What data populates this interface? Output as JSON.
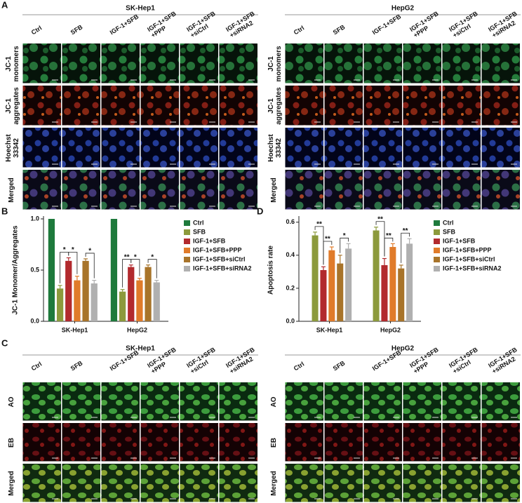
{
  "panel_labels": [
    "A",
    "B",
    "C",
    "D"
  ],
  "panel_a": {
    "grids": [
      {
        "title": "SK-Hep1",
        "columns": [
          [
            "Ctrl"
          ],
          [
            "SFB"
          ],
          [
            "IGF-1+SFB"
          ],
          [
            "IGF-1+SFB",
            "+PPP"
          ],
          [
            "IGF-1+SFB",
            "+siCtrl"
          ],
          [
            "IGF-1+SFB",
            "+siRNA2"
          ]
        ],
        "rows": [
          [
            "JC-1",
            "monomers"
          ],
          [
            "JC-1",
            "aggregates"
          ],
          [
            "Hoechst",
            "33342"
          ],
          [
            "Merged"
          ]
        ]
      },
      {
        "title": "HepG2",
        "columns": [
          [
            "Ctrl"
          ],
          [
            "SFB"
          ],
          [
            "IGF-1+SFB"
          ],
          [
            "IGF-1+SFB",
            "+PPP"
          ],
          [
            "IGF-1+SFB",
            "+siCtrl"
          ],
          [
            "IGF-1+SFB",
            "+siRNA2"
          ]
        ],
        "rows": [
          [
            "JC-1",
            "monomers"
          ],
          [
            "JC-1",
            "aggregates"
          ],
          [
            "Hoechst",
            "33342"
          ],
          [
            "Merged"
          ]
        ]
      }
    ]
  },
  "panel_c": {
    "grids": [
      {
        "title": "SK-Hep1",
        "columns": [
          [
            "Ctrl"
          ],
          [
            "SFB"
          ],
          [
            "IGF-1+SFB"
          ],
          [
            "IGF-1+SFB",
            "+PPP"
          ],
          [
            "IGF-1+SFB",
            "+siCtrl"
          ],
          [
            "IGF-1+SFB",
            "+siRNA2"
          ]
        ],
        "rows": [
          [
            "AO"
          ],
          [
            "EB"
          ],
          [
            "Merged"
          ]
        ]
      },
      {
        "title": "HepG2",
        "columns": [
          [
            "Ctrl"
          ],
          [
            "SFB"
          ],
          [
            "IGF-1+SFB"
          ],
          [
            "IGF-1+SFB",
            "+PPP"
          ],
          [
            "IGF-1+SFB",
            "+siCtrl"
          ],
          [
            "IGF-1+SFB",
            "+siRNA2"
          ]
        ],
        "rows": [
          [
            "AO"
          ],
          [
            "EB"
          ],
          [
            "Merged"
          ]
        ]
      }
    ]
  },
  "chart_data": [
    {
      "type": "bar",
      "ylabel": "JC-1 Monomer/Aggregates",
      "categories": [
        "SK-Hep1",
        "HepG2"
      ],
      "ylim": [
        0,
        1.0
      ],
      "yticks": [
        {
          "value": 0,
          "label": "0.0"
        },
        0.5,
        {
          "value": 1,
          "label": "1.0"
        }
      ],
      "series": [
        {
          "name": "Ctrl",
          "color": "#1e7a3c",
          "values": [
            1.0,
            1.0
          ]
        },
        {
          "name": "SFB",
          "color": "#8c9a3c",
          "values": [
            0.32,
            0.29
          ],
          "errors": [
            0.03,
            0.02
          ]
        },
        {
          "name": "IGF-1+SFB",
          "color": "#b22a2e",
          "values": [
            0.59,
            0.53
          ],
          "errors": [
            0.03,
            0.02
          ]
        },
        {
          "name": "IGF-1+SFB+PPP",
          "color": "#e07b2a",
          "values": [
            0.4,
            0.4
          ],
          "errors": [
            0.04,
            0.02
          ]
        },
        {
          "name": "IGF-1+SFB+siCtrl",
          "color": "#a8742a",
          "values": [
            0.59,
            0.53
          ],
          "errors": [
            0.02,
            0.02
          ]
        },
        {
          "name": "IGF-1+SFB+siRNA2",
          "color": "#b0b0b0",
          "values": [
            0.37,
            0.38
          ],
          "errors": [
            0.03,
            0.02
          ]
        }
      ],
      "annotations": [
        {
          "category": "SK-Hep1",
          "from": "SFB",
          "to": "IGF-1+SFB",
          "label": "*"
        },
        {
          "category": "SK-Hep1",
          "from": "IGF-1+SFB",
          "to": "IGF-1+SFB+PPP",
          "label": "*"
        },
        {
          "category": "SK-Hep1",
          "from": "IGF-1+SFB+siCtrl",
          "to": "IGF-1+SFB+siRNA2",
          "label": "*"
        },
        {
          "category": "HepG2",
          "from": "SFB",
          "to": "IGF-1+SFB",
          "label": "**"
        },
        {
          "category": "HepG2",
          "from": "IGF-1+SFB",
          "to": "IGF-1+SFB+PPP",
          "label": "*"
        },
        {
          "category": "HepG2",
          "from": "IGF-1+SFB+siCtrl",
          "to": "IGF-1+SFB+siRNA2",
          "label": "*"
        }
      ]
    },
    {
      "type": "bar",
      "ylabel": "Apoptosis rate",
      "categories": [
        "SK-Hep1",
        "HepG2"
      ],
      "ylim": [
        0,
        0.62
      ],
      "yticks": [
        {
          "value": 0,
          "label": "0.0"
        },
        0.2,
        0.4,
        0.6
      ],
      "series": [
        {
          "name": "Ctrl",
          "color": "#1e7a3c",
          "values": [
            null,
            null
          ]
        },
        {
          "name": "SFB",
          "color": "#8c9a3c",
          "values": [
            0.52,
            0.55
          ],
          "errors": [
            0.02,
            0.02
          ]
        },
        {
          "name": "IGF-1+SFB",
          "color": "#b22a2e",
          "values": [
            0.31,
            0.34
          ],
          "errors": [
            0.02,
            0.04
          ]
        },
        {
          "name": "IGF-1+SFB+PPP",
          "color": "#e07b2a",
          "values": [
            0.43,
            0.45
          ],
          "errors": [
            0.02,
            0.02
          ]
        },
        {
          "name": "IGF-1+SFB+siCtrl",
          "color": "#a8742a",
          "values": [
            0.35,
            0.32
          ],
          "errors": [
            0.05,
            0.02
          ]
        },
        {
          "name": "IGF-1+SFB+siRNA2",
          "color": "#b0b0b0",
          "values": [
            0.44,
            0.47
          ],
          "errors": [
            0.03,
            0.03
          ]
        }
      ],
      "annotations": [
        {
          "category": "SK-Hep1",
          "from": "SFB",
          "to": "IGF-1+SFB",
          "label": "**"
        },
        {
          "category": "SK-Hep1",
          "from": "IGF-1+SFB",
          "to": "IGF-1+SFB+PPP",
          "label": "**"
        },
        {
          "category": "SK-Hep1",
          "from": "IGF-1+SFB+siCtrl",
          "to": "IGF-1+SFB+siRNA2",
          "label": "*"
        },
        {
          "category": "HepG2",
          "from": "SFB",
          "to": "IGF-1+SFB",
          "label": "**"
        },
        {
          "category": "HepG2",
          "from": "IGF-1+SFB",
          "to": "IGF-1+SFB+PPP",
          "label": "**"
        },
        {
          "category": "HepG2",
          "from": "IGF-1+SFB+siCtrl",
          "to": "IGF-1+SFB+siRNA2",
          "label": "**"
        }
      ]
    }
  ]
}
